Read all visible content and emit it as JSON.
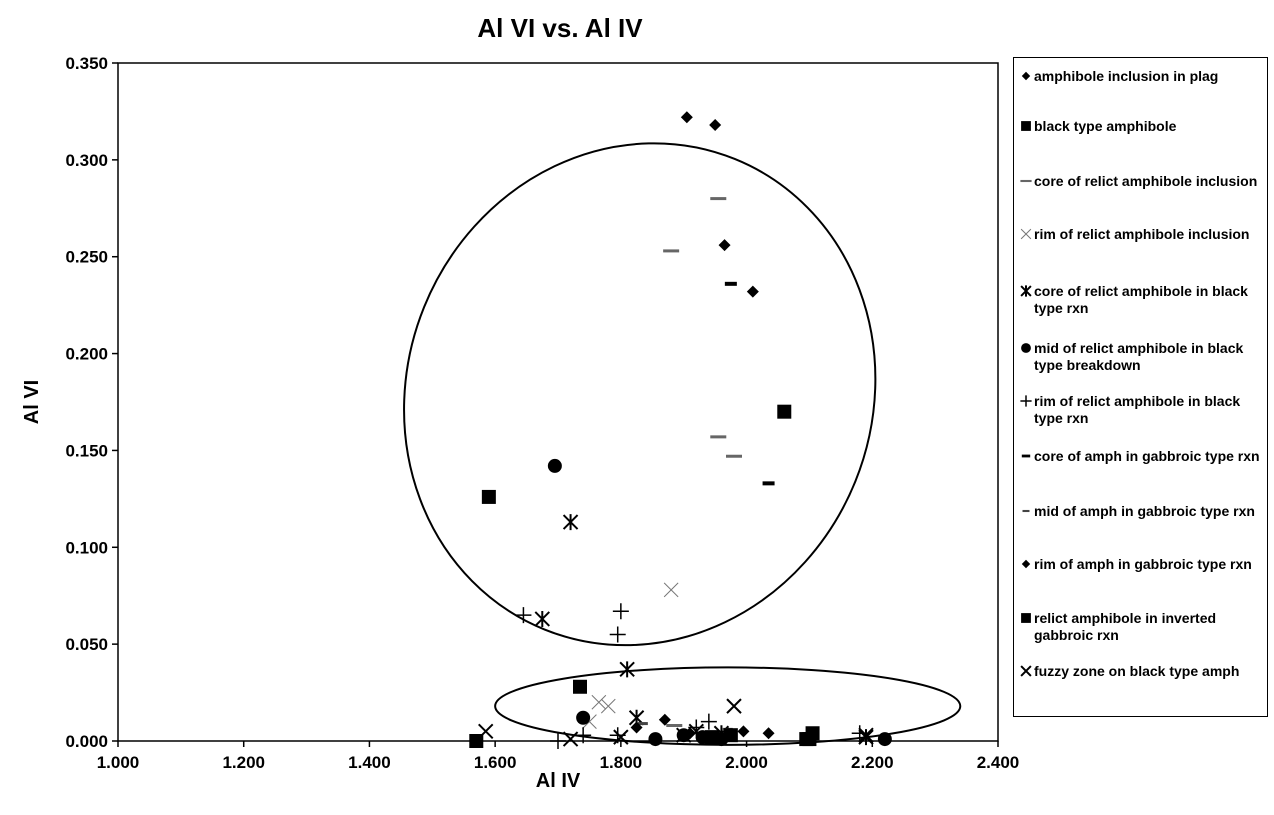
{
  "chart_data": {
    "type": "scatter",
    "title": "Al VI vs. Al IV",
    "xlabel": "Al IV",
    "ylabel": "Al VI",
    "xlim": [
      1.0,
      2.4
    ],
    "ylim": [
      0.0,
      0.35
    ],
    "x_ticks": [
      "1.000",
      "1.200",
      "1.400",
      "1.600",
      "1.800",
      "2.000",
      "2.200",
      "2.400"
    ],
    "y_ticks": [
      "0.000",
      "0.050",
      "0.100",
      "0.150",
      "0.200",
      "0.250",
      "0.300",
      "0.350"
    ],
    "grid": false,
    "legend_position": "right",
    "series": [
      {
        "name": "amphibole inclusion in plag",
        "marker": "diamond",
        "points": [
          [
            1.905,
            0.322
          ],
          [
            1.95,
            0.318
          ],
          [
            1.965,
            0.256
          ],
          [
            2.01,
            0.232
          ]
        ]
      },
      {
        "name": "black type amphibole",
        "marker": "square",
        "points": [
          [
            1.59,
            0.126
          ],
          [
            1.57,
            0.0
          ],
          [
            1.735,
            0.028
          ],
          [
            2.06,
            0.17
          ],
          [
            2.1,
            0.001
          ]
        ]
      },
      {
        "name": "core of relict amphibole inclusion",
        "marker": "tiny-dash",
        "points": [
          [
            1.955,
            0.28
          ],
          [
            1.88,
            0.253
          ],
          [
            1.955,
            0.157
          ],
          [
            1.98,
            0.147
          ],
          [
            1.885,
            0.008
          ]
        ]
      },
      {
        "name": "rim of relict amphibole inclusion",
        "marker": "x-thin",
        "points": [
          [
            1.88,
            0.078
          ],
          [
            1.765,
            0.02
          ],
          [
            1.78,
            0.018
          ],
          [
            1.75,
            0.01
          ]
        ]
      },
      {
        "name": "core of relict amphibole in black type rxn",
        "marker": "asterisk",
        "points": [
          [
            1.72,
            0.113
          ],
          [
            1.675,
            0.063
          ],
          [
            1.81,
            0.037
          ],
          [
            1.825,
            0.012
          ],
          [
            1.96,
            0.004
          ],
          [
            2.19,
            0.002
          ]
        ]
      },
      {
        "name": "mid of relict amphibole in black type breakdown",
        "marker": "circle",
        "points": [
          [
            1.695,
            0.142
          ],
          [
            1.74,
            0.012
          ],
          [
            1.855,
            0.001
          ],
          [
            1.9,
            0.003
          ],
          [
            1.93,
            0.002
          ],
          [
            1.96,
            0.001
          ],
          [
            2.22,
            0.001
          ]
        ]
      },
      {
        "name": "rim of relict amphibole in black type rxn",
        "marker": "plus",
        "points": [
          [
            1.645,
            0.065
          ],
          [
            1.8,
            0.067
          ],
          [
            1.795,
            0.055
          ],
          [
            1.7,
            0.0
          ],
          [
            1.74,
            0.003
          ],
          [
            1.795,
            0.003
          ],
          [
            1.92,
            0.007
          ],
          [
            1.94,
            0.01
          ],
          [
            2.18,
            0.004
          ]
        ]
      },
      {
        "name": "core of amph in gabbroic type rxn",
        "marker": "dash",
        "points": [
          [
            1.975,
            0.236
          ],
          [
            2.035,
            0.133
          ]
        ]
      },
      {
        "name": "mid of amph in gabbroic type rxn",
        "marker": "small-dash",
        "points": [
          [
            1.835,
            0.009
          ],
          [
            1.97,
            0.006
          ]
        ]
      },
      {
        "name": "rim of amph in gabbroic type rxn",
        "marker": "diamond",
        "points": [
          [
            1.87,
            0.011
          ],
          [
            1.825,
            0.007
          ],
          [
            1.91,
            0.004
          ],
          [
            1.995,
            0.005
          ],
          [
            2.035,
            0.004
          ]
        ]
      },
      {
        "name": "relict amphibole in inverted gabbroic rxn",
        "marker": "square",
        "points": [
          [
            2.105,
            0.004
          ],
          [
            2.095,
            0.001
          ],
          [
            1.975,
            0.003
          ],
          [
            1.945,
            0.002
          ]
        ]
      },
      {
        "name": "fuzzy zone on black type amph",
        "marker": "x",
        "points": [
          [
            1.585,
            0.005
          ],
          [
            1.72,
            0.001
          ],
          [
            1.8,
            0.002
          ],
          [
            1.98,
            0.018
          ],
          [
            1.9,
            0.003
          ],
          [
            2.19,
            0.003
          ],
          [
            1.92,
            0.005
          ]
        ]
      }
    ],
    "annotations": [
      {
        "shape": "ellipse",
        "description": "upper data cluster",
        "cx": 1.83,
        "cy": 0.179,
        "rx": 0.37,
        "ry": 0.131,
        "rotate_deg": 22
      },
      {
        "shape": "ellipse",
        "description": "lower data cluster",
        "cx": 1.97,
        "cy": 0.018,
        "rx": 0.37,
        "ry": 0.02,
        "rotate_deg": 0
      }
    ]
  },
  "colors": {
    "ink": "#000000",
    "background": "#ffffff"
  }
}
